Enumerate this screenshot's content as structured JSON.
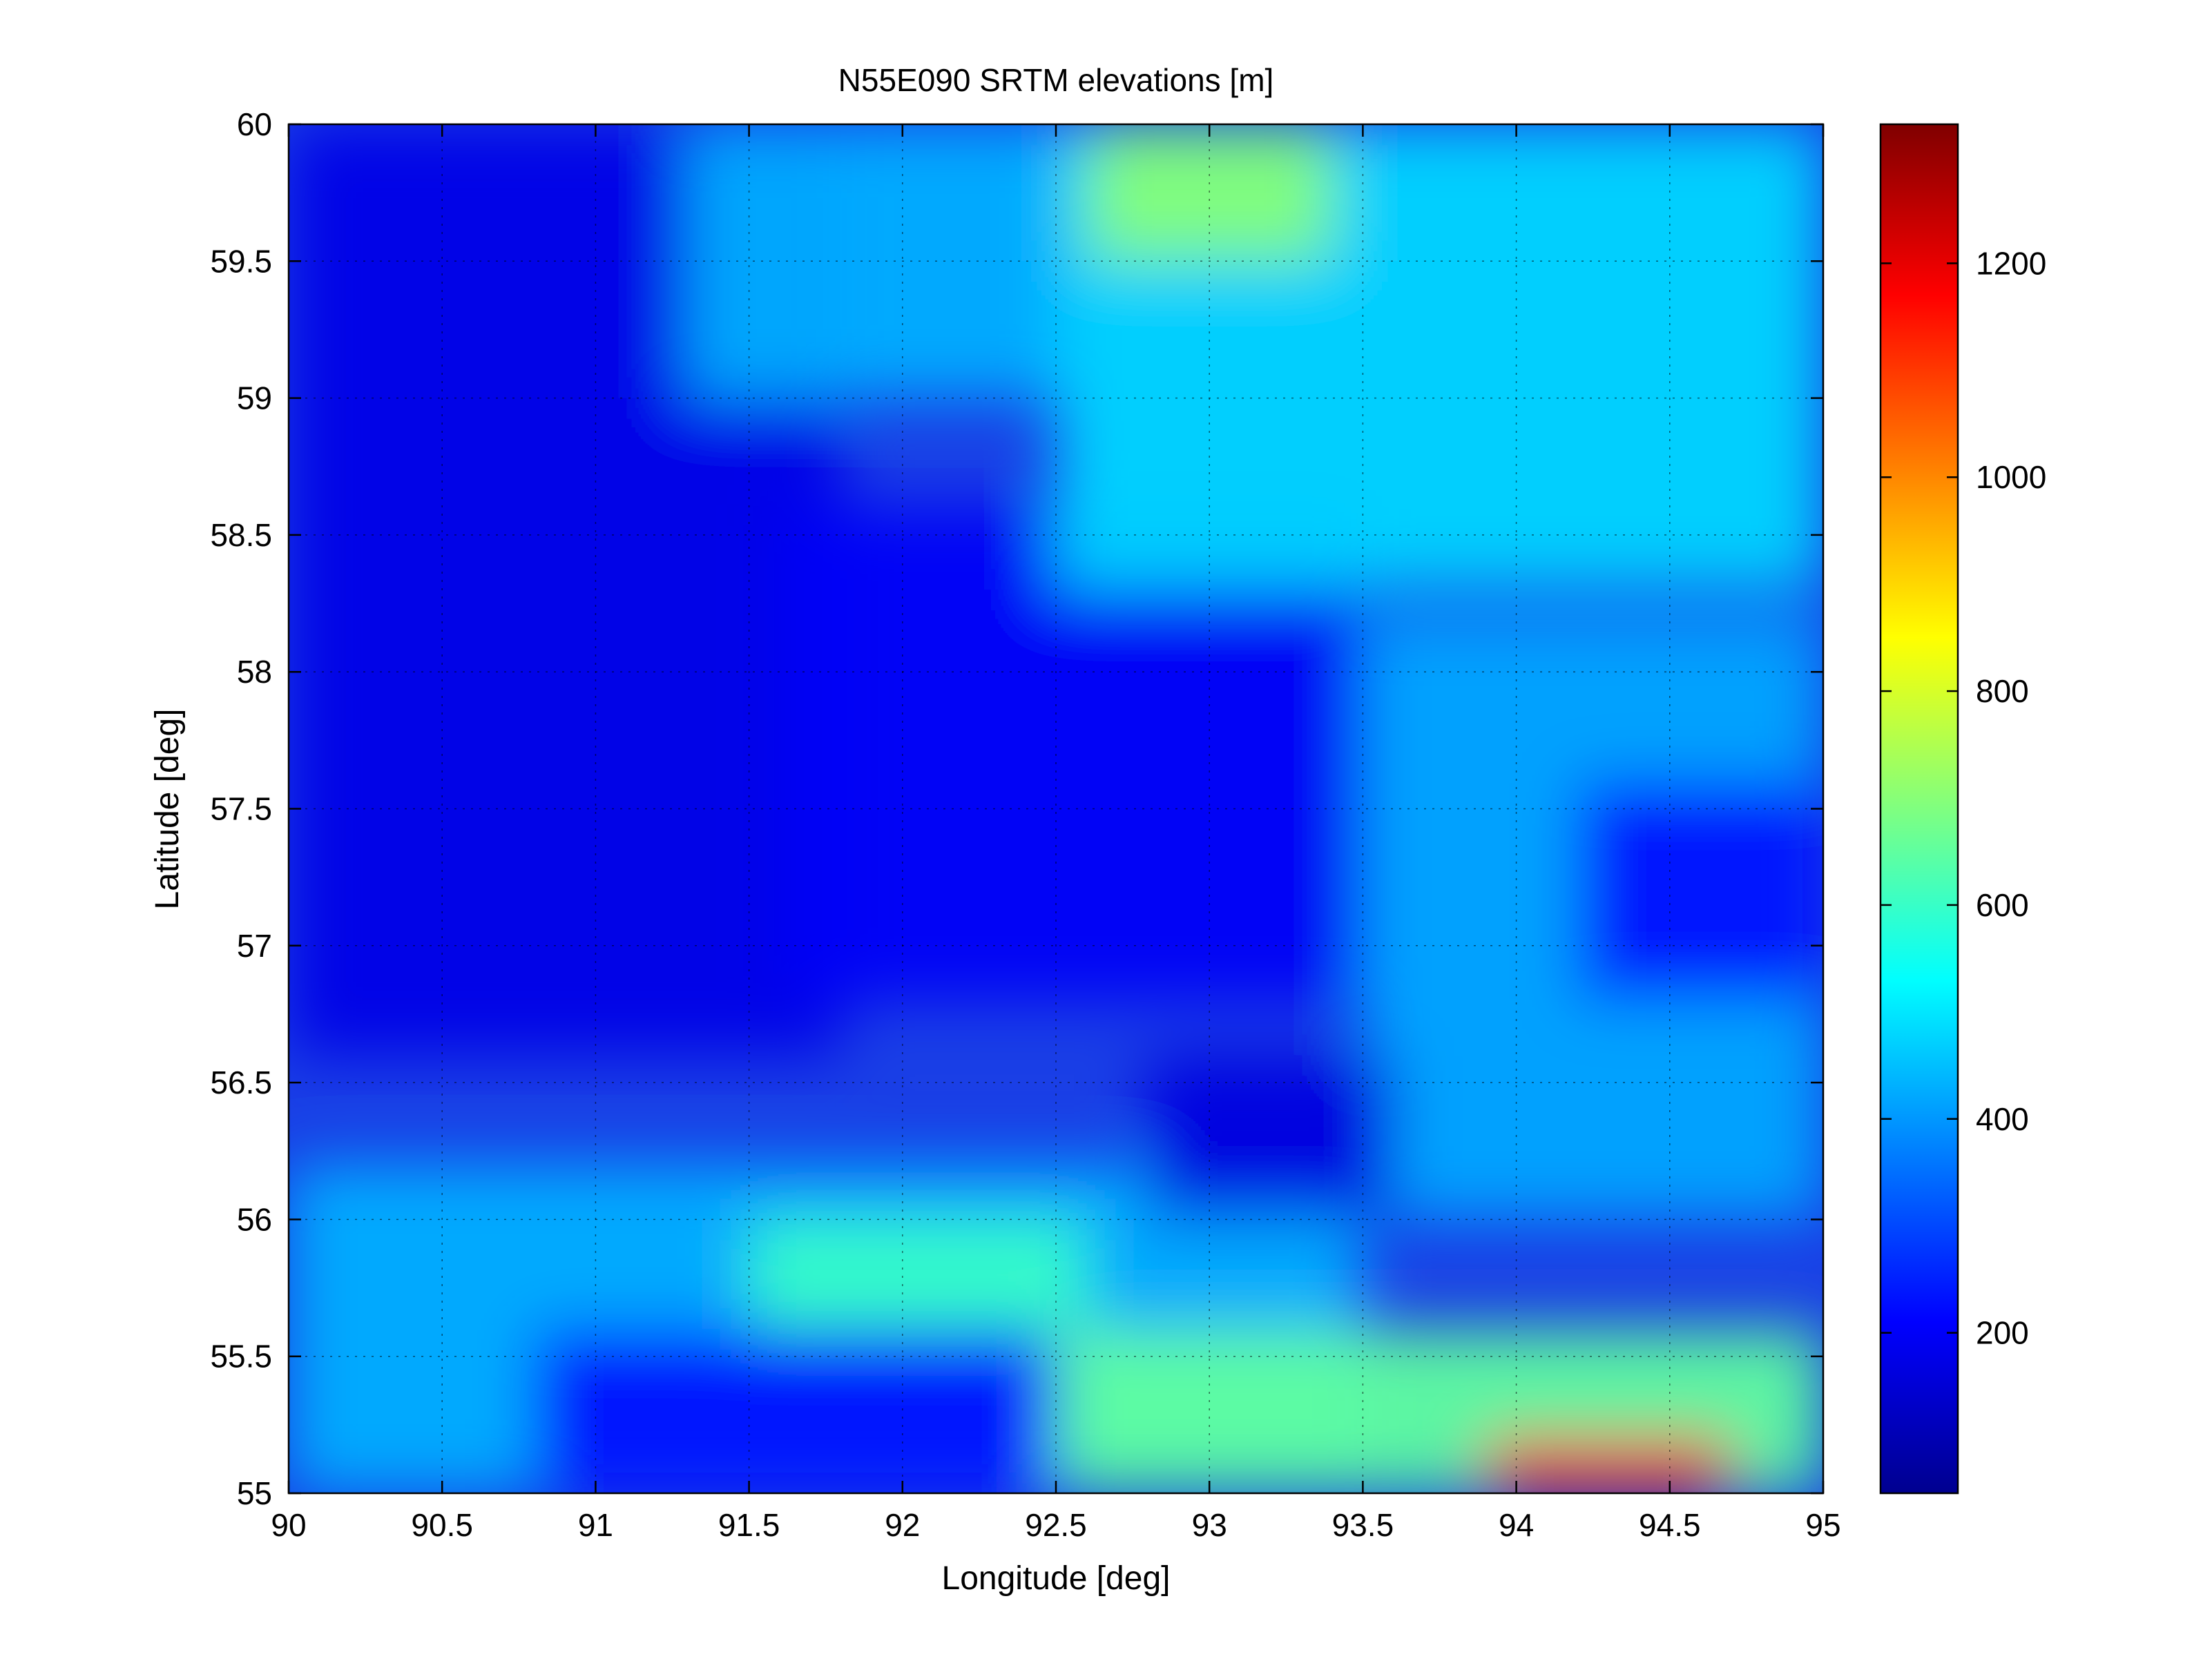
{
  "chart_data": {
    "type": "heatmap",
    "title": "N55E090 SRTM elevations [m]",
    "xlabel": "Longitude [deg]",
    "ylabel": "Latitude [deg]",
    "xlim": [
      90,
      95
    ],
    "ylim": [
      55,
      60
    ],
    "xticks": [
      "90",
      "90.5",
      "91",
      "91.5",
      "92",
      "92.5",
      "93",
      "93.5",
      "94",
      "94.5",
      "95"
    ],
    "yticks": [
      "55",
      "55.5",
      "56",
      "56.5",
      "57",
      "57.5",
      "58",
      "58.5",
      "59",
      "59.5",
      "60"
    ],
    "colorbar": {
      "colormap": "jet",
      "range": [
        50,
        1330
      ],
      "ticks": [
        "200",
        "400",
        "600",
        "800",
        "1000",
        "1200"
      ]
    },
    "grid": true,
    "z_regions": [
      {
        "lon": [
          90.0,
          91.8
        ],
        "lat": [
          56.6,
          60.0
        ],
        "elevation": 180
      },
      {
        "lon": [
          91.6,
          93.5
        ],
        "lat": [
          56.8,
          58.6
        ],
        "elevation": 200
      },
      {
        "lon": [
          91.3,
          92.5
        ],
        "lat": [
          59.0,
          60.0
        ],
        "elevation": 430
      },
      {
        "lon": [
          92.5,
          95.0
        ],
        "lat": [
          58.3,
          60.0
        ],
        "elevation": 480
      },
      {
        "lon": [
          92.6,
          93.4
        ],
        "lat": [
          59.5,
          60.0
        ],
        "elevation": 700
      },
      {
        "lon": [
          93.5,
          95.0
        ],
        "lat": [
          56.0,
          58.2
        ],
        "elevation": 420
      },
      {
        "lon": [
          94.2,
          95.0
        ],
        "lat": [
          56.8,
          57.6
        ],
        "elevation": 230
      },
      {
        "lon": [
          90.0,
          93.5
        ],
        "lat": [
          55.0,
          56.2
        ],
        "elevation": 430
      },
      {
        "lon": [
          91.5,
          92.6
        ],
        "lat": [
          55.4,
          56.0
        ],
        "elevation": 600
      },
      {
        "lon": [
          92.5,
          95.0
        ],
        "lat": [
          55.0,
          55.6
        ],
        "elevation": 650
      },
      {
        "lon": [
          93.9,
          94.7
        ],
        "lat": [
          55.0,
          55.2
        ],
        "elevation": 1150
      },
      {
        "lon": [
          90.8,
          92.5
        ],
        "lat": [
          55.0,
          55.6
        ],
        "elevation": 230
      },
      {
        "lon": [
          92.8,
          93.6
        ],
        "lat": [
          56.0,
          56.6
        ],
        "elevation": 170
      }
    ]
  }
}
